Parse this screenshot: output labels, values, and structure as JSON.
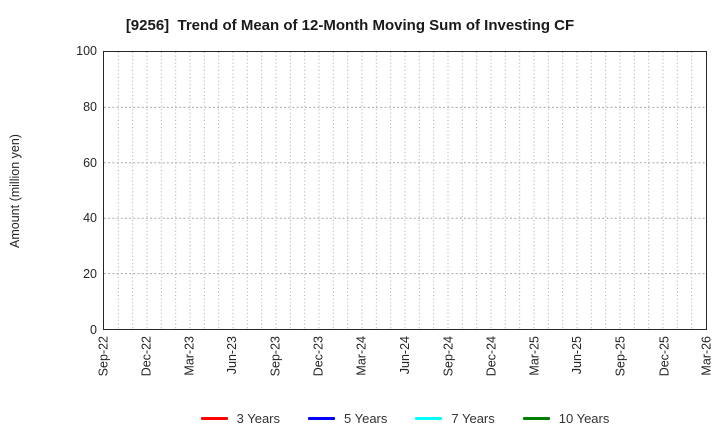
{
  "chart_data": {
    "type": "line",
    "title": "[9256]  Trend of Mean of 12-Month Moving Sum of Investing CF",
    "xlabel": "",
    "ylabel": "Amount (million yen)",
    "ylim": [
      0,
      100
    ],
    "yticks": [
      0,
      20,
      40,
      60,
      80,
      100
    ],
    "x_tick_labels": [
      "Sep-22",
      "Dec-22",
      "Mar-23",
      "Jun-23",
      "Sep-23",
      "Dec-23",
      "Mar-24",
      "Jun-24",
      "Sep-24",
      "Dec-24",
      "Mar-25",
      "Jun-25",
      "Sep-25",
      "Dec-25",
      "Mar-26"
    ],
    "months_per_tick": 3,
    "total_months": 42,
    "grid": {
      "style": "dotted",
      "vertical": "monthly",
      "horizontal": "every 20 units",
      "color": "#a8a8a8"
    },
    "axis_color": "#262626",
    "legend_position": "bottom",
    "series": [
      {
        "name": "3 Years",
        "color": "#ff0000",
        "values": []
      },
      {
        "name": "5 Years",
        "color": "#0000ff",
        "values": []
      },
      {
        "name": "7 Years",
        "color": "#00ffff",
        "values": []
      },
      {
        "name": "10 Years",
        "color": "#008000",
        "values": []
      }
    ]
  }
}
